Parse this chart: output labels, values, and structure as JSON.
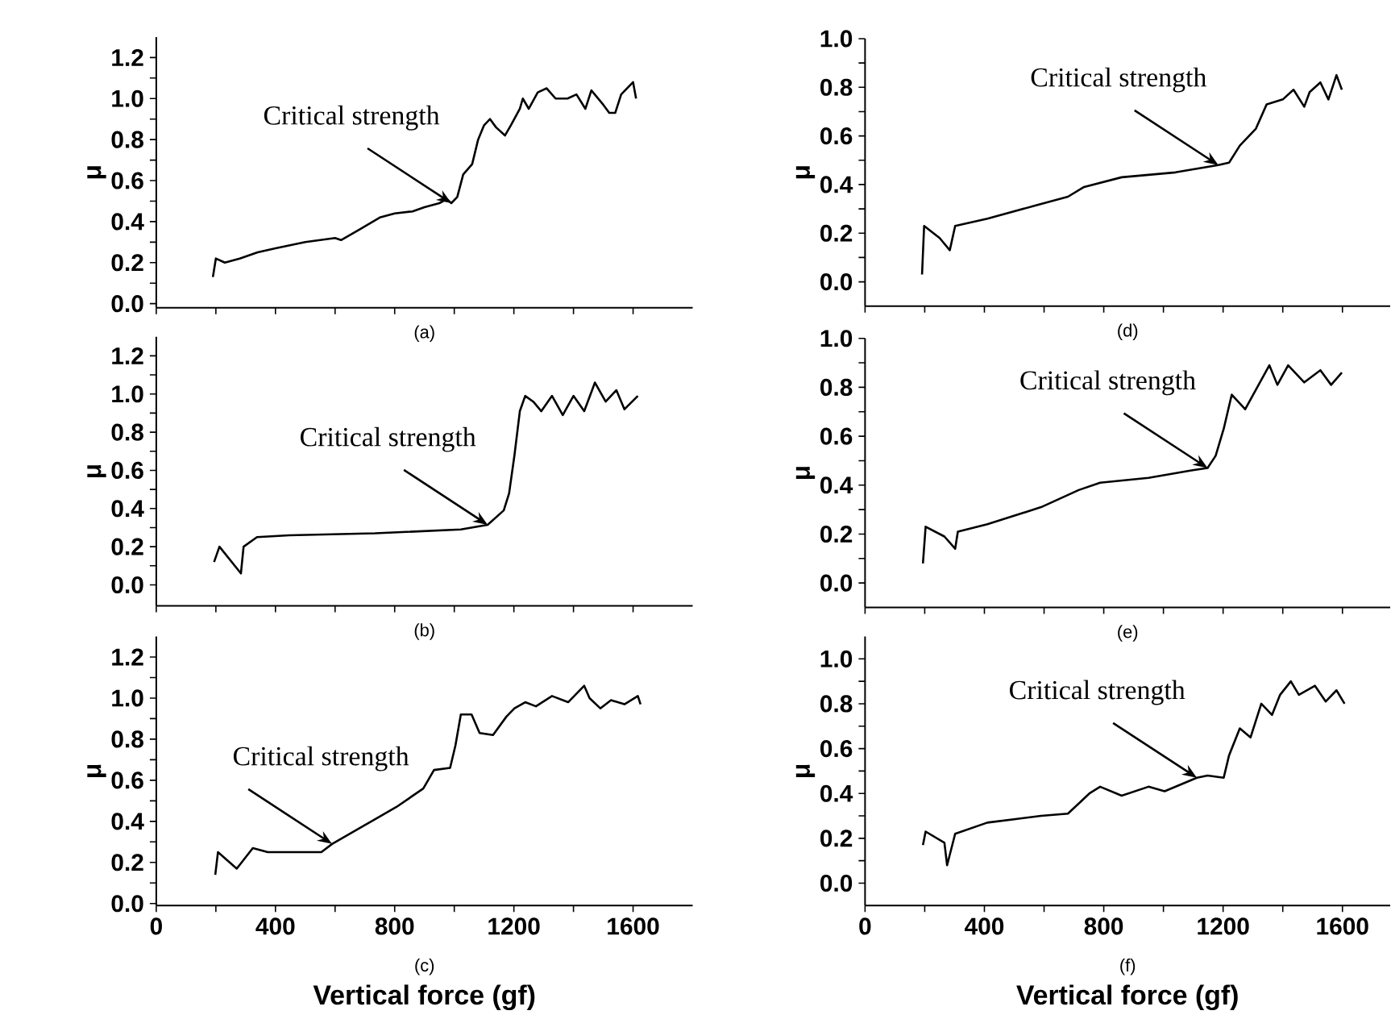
{
  "chart_data": [
    {
      "type": "line",
      "ylabel": "μ",
      "tick_labels": "y",
      "xlim": [
        0,
        1800
      ],
      "ylim": [
        -0.02,
        1.3
      ],
      "xticks": [
        {
          "value": 0,
          "label": null
        },
        {
          "value": 200,
          "label": null
        },
        {
          "value": 400,
          "label": null
        },
        {
          "value": 600,
          "label": null
        },
        {
          "value": 800,
          "label": null
        },
        {
          "value": 1000,
          "label": null
        },
        {
          "value": 1200,
          "label": null
        },
        {
          "value": 1400,
          "label": null
        },
        {
          "value": 1600,
          "label": null
        }
      ],
      "yticks": [
        {
          "value": 0,
          "label": "0.0"
        },
        {
          "value": 0.1,
          "label": null
        },
        0.2,
        {
          "value": 0.3,
          "label": null
        },
        0.4,
        {
          "value": 0.5,
          "label": null
        },
        0.6,
        {
          "value": 0.7,
          "label": null
        },
        0.8,
        {
          "value": 0.9,
          "label": null
        },
        {
          "value": 1,
          "label": "1.0"
        },
        {
          "value": 1.1,
          "label": null
        },
        1.2
      ],
      "x": [
        190,
        200,
        230,
        280,
        340,
        400,
        500,
        600,
        620,
        680,
        750,
        800,
        860,
        900,
        950,
        975,
        990,
        1010,
        1030,
        1060,
        1080,
        1100,
        1120,
        1140,
        1170,
        1190,
        1220,
        1230,
        1250,
        1280,
        1310,
        1340,
        1380,
        1410,
        1440,
        1460,
        1500,
        1520,
        1540,
        1560,
        1580,
        1600,
        1610
      ],
      "values": [
        0.13,
        0.22,
        0.2,
        0.22,
        0.25,
        0.27,
        0.3,
        0.32,
        0.31,
        0.36,
        0.42,
        0.44,
        0.45,
        0.47,
        0.49,
        0.51,
        0.49,
        0.52,
        0.63,
        0.68,
        0.8,
        0.87,
        0.9,
        0.86,
        0.82,
        0.87,
        0.95,
        1.0,
        0.95,
        1.03,
        1.05,
        1.0,
        1.0,
        1.02,
        0.95,
        1.04,
        0.97,
        0.93,
        0.93,
        1.02,
        1.05,
        1.08,
        1.0
      ],
      "color": "#000000",
      "marker": "none",
      "annotations": [
        "(a)",
        {
          "text": "Critical strength",
          "x": 990,
          "y": 0.49
        }
      ]
    },
    {
      "type": "line",
      "ylabel": "μ",
      "tick_labels": "y",
      "xlim": [
        0,
        1760
      ],
      "ylim": [
        -0.1,
        1.0
      ],
      "xticks": [
        {
          "value": 0,
          "label": null
        },
        {
          "value": 200,
          "label": null
        },
        {
          "value": 400,
          "label": null
        },
        {
          "value": 600,
          "label": null
        },
        {
          "value": 800,
          "label": null
        },
        {
          "value": 1000,
          "label": null
        },
        {
          "value": 1200,
          "label": null
        },
        {
          "value": 1400,
          "label": null
        },
        {
          "value": 1600,
          "label": null
        }
      ],
      "yticks": [
        {
          "value": 0,
          "label": "0.0"
        },
        {
          "value": 0.1,
          "label": null
        },
        0.2,
        {
          "value": 0.3,
          "label": null
        },
        0.4,
        {
          "value": 0.5,
          "label": null
        },
        0.6,
        {
          "value": 0.7,
          "label": null
        },
        0.8,
        {
          "value": 0.9,
          "label": null
        },
        {
          "value": 1,
          "label": "1.0"
        }
      ],
      "x": [
        191,
        198,
        250,
        284,
        302,
        410,
        590,
        680,
        734,
        860,
        1040,
        1184,
        1220,
        1256,
        1310,
        1346,
        1400,
        1436,
        1472,
        1490,
        1526,
        1553,
        1580,
        1598
      ],
      "values": [
        0.03,
        0.23,
        0.18,
        0.13,
        0.23,
        0.26,
        0.32,
        0.35,
        0.39,
        0.43,
        0.45,
        0.48,
        0.49,
        0.56,
        0.63,
        0.73,
        0.75,
        0.79,
        0.72,
        0.78,
        0.82,
        0.75,
        0.85,
        0.79
      ],
      "color": "#000000",
      "marker": "none",
      "annotations": [
        "(d)",
        {
          "text": "Critical strength",
          "x": 1184,
          "y": 0.48
        }
      ]
    },
    {
      "type": "line",
      "ylabel": "μ",
      "tick_labels": "y",
      "xlim": [
        0,
        1800
      ],
      "ylim": [
        -0.11,
        1.3
      ],
      "xticks": [
        {
          "value": 0,
          "label": null
        },
        {
          "value": 200,
          "label": null
        },
        {
          "value": 400,
          "label": null
        },
        {
          "value": 600,
          "label": null
        },
        {
          "value": 800,
          "label": null
        },
        {
          "value": 1000,
          "label": null
        },
        {
          "value": 1200,
          "label": null
        },
        {
          "value": 1400,
          "label": null
        },
        {
          "value": 1600,
          "label": null
        }
      ],
      "yticks": [
        {
          "value": 0,
          "label": "0.0"
        },
        {
          "value": 0.1,
          "label": null
        },
        0.2,
        {
          "value": 0.3,
          "label": null
        },
        0.4,
        {
          "value": 0.5,
          "label": null
        },
        0.6,
        {
          "value": 0.7,
          "label": null
        },
        0.8,
        {
          "value": 0.9,
          "label": null
        },
        {
          "value": 1,
          "label": "1.0"
        },
        {
          "value": 1.1,
          "label": null
        },
        1.2
      ],
      "x": [
        194,
        212,
        284,
        293,
        338,
        446,
        734,
        1022,
        1112,
        1166,
        1184,
        1202,
        1220,
        1238,
        1265,
        1292,
        1328,
        1364,
        1400,
        1436,
        1472,
        1508,
        1544,
        1571,
        1616
      ],
      "values": [
        0.12,
        0.2,
        0.06,
        0.2,
        0.25,
        0.26,
        0.27,
        0.29,
        0.315,
        0.39,
        0.48,
        0.68,
        0.91,
        0.99,
        0.96,
        0.91,
        0.99,
        0.89,
        0.99,
        0.91,
        1.06,
        0.96,
        1.02,
        0.92,
        0.99
      ],
      "color": "#000000",
      "marker": "none",
      "annotations": [
        "(b)",
        {
          "text": "Critical strength",
          "x": 1112,
          "y": 0.315
        }
      ]
    },
    {
      "type": "line",
      "ylabel": "μ",
      "tick_labels": "y",
      "xlim": [
        0,
        1760
      ],
      "ylim": [
        -0.1,
        1.0
      ],
      "xticks": [
        {
          "value": 0,
          "label": null
        },
        {
          "value": 200,
          "label": null
        },
        {
          "value": 400,
          "label": null
        },
        {
          "value": 600,
          "label": null
        },
        {
          "value": 800,
          "label": null
        },
        {
          "value": 1000,
          "label": null
        },
        {
          "value": 1200,
          "label": null
        },
        {
          "value": 1400,
          "label": null
        },
        {
          "value": 1600,
          "label": null
        }
      ],
      "yticks": [
        {
          "value": 0,
          "label": "0.0"
        },
        {
          "value": 0.1,
          "label": null
        },
        0.2,
        {
          "value": 0.3,
          "label": null
        },
        0.4,
        {
          "value": 0.5,
          "label": null
        },
        0.6,
        {
          "value": 0.7,
          "label": null
        },
        0.8,
        {
          "value": 0.9,
          "label": null
        },
        {
          "value": 1,
          "label": "1.0"
        }
      ],
      "x": [
        194,
        203,
        266,
        302,
        311,
        410,
        590,
        716,
        788,
        950,
        1094,
        1148,
        1175,
        1202,
        1229,
        1274,
        1310,
        1355,
        1382,
        1418,
        1472,
        1526,
        1562,
        1598
      ],
      "values": [
        0.08,
        0.23,
        0.19,
        0.14,
        0.21,
        0.24,
        0.31,
        0.38,
        0.41,
        0.43,
        0.46,
        0.47,
        0.52,
        0.63,
        0.77,
        0.71,
        0.79,
        0.89,
        0.81,
        0.89,
        0.82,
        0.87,
        0.81,
        0.86
      ],
      "color": "#000000",
      "marker": "none",
      "annotations": [
        "(e)",
        {
          "text": "Critical strength",
          "x": 1148,
          "y": 0.47
        }
      ]
    },
    {
      "type": "line",
      "ylabel": "μ",
      "xlabel": "Vertical force  (gf)",
      "xlim": [
        0,
        1800
      ],
      "ylim": [
        -0.01,
        1.3
      ],
      "xticks": [
        0,
        {
          "value": 200,
          "label": null
        },
        400,
        {
          "value": 600,
          "label": null
        },
        800,
        {
          "value": 1000,
          "label": null
        },
        1200,
        {
          "value": 1400,
          "label": null
        },
        1600
      ],
      "yticks": [
        {
          "value": 0,
          "label": "0.0"
        },
        {
          "value": 0.1,
          "label": null
        },
        0.2,
        {
          "value": 0.3,
          "label": null
        },
        0.4,
        {
          "value": 0.5,
          "label": null
        },
        0.6,
        {
          "value": 0.7,
          "label": null
        },
        0.8,
        {
          "value": 0.9,
          "label": null
        },
        {
          "value": 1,
          "label": "1.0"
        },
        {
          "value": 1.1,
          "label": null
        },
        1.2
      ],
      "x": [
        198,
        207,
        270,
        324,
        374,
        554,
        590,
        698,
        806,
        896,
        932,
        986,
        1004,
        1022,
        1058,
        1085,
        1130,
        1175,
        1202,
        1238,
        1274,
        1328,
        1382,
        1436,
        1454,
        1490,
        1526,
        1571,
        1616,
        1625
      ],
      "values": [
        0.14,
        0.25,
        0.17,
        0.27,
        0.25,
        0.25,
        0.29,
        0.38,
        0.47,
        0.56,
        0.65,
        0.66,
        0.77,
        0.92,
        0.92,
        0.83,
        0.82,
        0.91,
        0.95,
        0.98,
        0.96,
        1.01,
        0.98,
        1.06,
        1.0,
        0.95,
        0.99,
        0.97,
        1.01,
        0.97
      ],
      "color": "#000000",
      "marker": "none",
      "annotations": [
        "(c)",
        {
          "text": "Critical strength",
          "x": 590,
          "y": 0.29
        }
      ]
    },
    {
      "type": "line",
      "ylabel": "μ",
      "xlabel": "Vertical force  (gf)",
      "xlim": [
        0,
        1760
      ],
      "ylim": [
        -0.1,
        1.1
      ],
      "xticks": [
        0,
        {
          "value": 200,
          "label": null
        },
        400,
        {
          "value": 600,
          "label": null
        },
        800,
        {
          "value": 1000,
          "label": null
        },
        1200,
        {
          "value": 1400,
          "label": null
        },
        1600
      ],
      "yticks": [
        {
          "value": 0,
          "label": "0.0"
        },
        {
          "value": 0.1,
          "label": null
        },
        0.2,
        {
          "value": 0.3,
          "label": null
        },
        0.4,
        {
          "value": 0.5,
          "label": null
        },
        0.6,
        {
          "value": 0.7,
          "label": null
        },
        0.8,
        {
          "value": 0.9,
          "label": null
        },
        {
          "value": 1,
          "label": "1.0"
        }
      ],
      "x": [
        194,
        203,
        266,
        275,
        302,
        410,
        590,
        680,
        752,
        788,
        860,
        950,
        1004,
        1112,
        1148,
        1202,
        1220,
        1256,
        1292,
        1328,
        1364,
        1391,
        1427,
        1454,
        1508,
        1544,
        1580,
        1607
      ],
      "values": [
        0.17,
        0.23,
        0.18,
        0.08,
        0.22,
        0.27,
        0.3,
        0.31,
        0.4,
        0.43,
        0.39,
        0.43,
        0.41,
        0.47,
        0.48,
        0.47,
        0.57,
        0.69,
        0.65,
        0.8,
        0.75,
        0.84,
        0.9,
        0.84,
        0.88,
        0.81,
        0.86,
        0.8
      ],
      "color": "#000000",
      "marker": "none",
      "annotations": [
        "(f)",
        {
          "text": "Critical strength",
          "x": 1112,
          "y": 0.47
        }
      ]
    }
  ]
}
